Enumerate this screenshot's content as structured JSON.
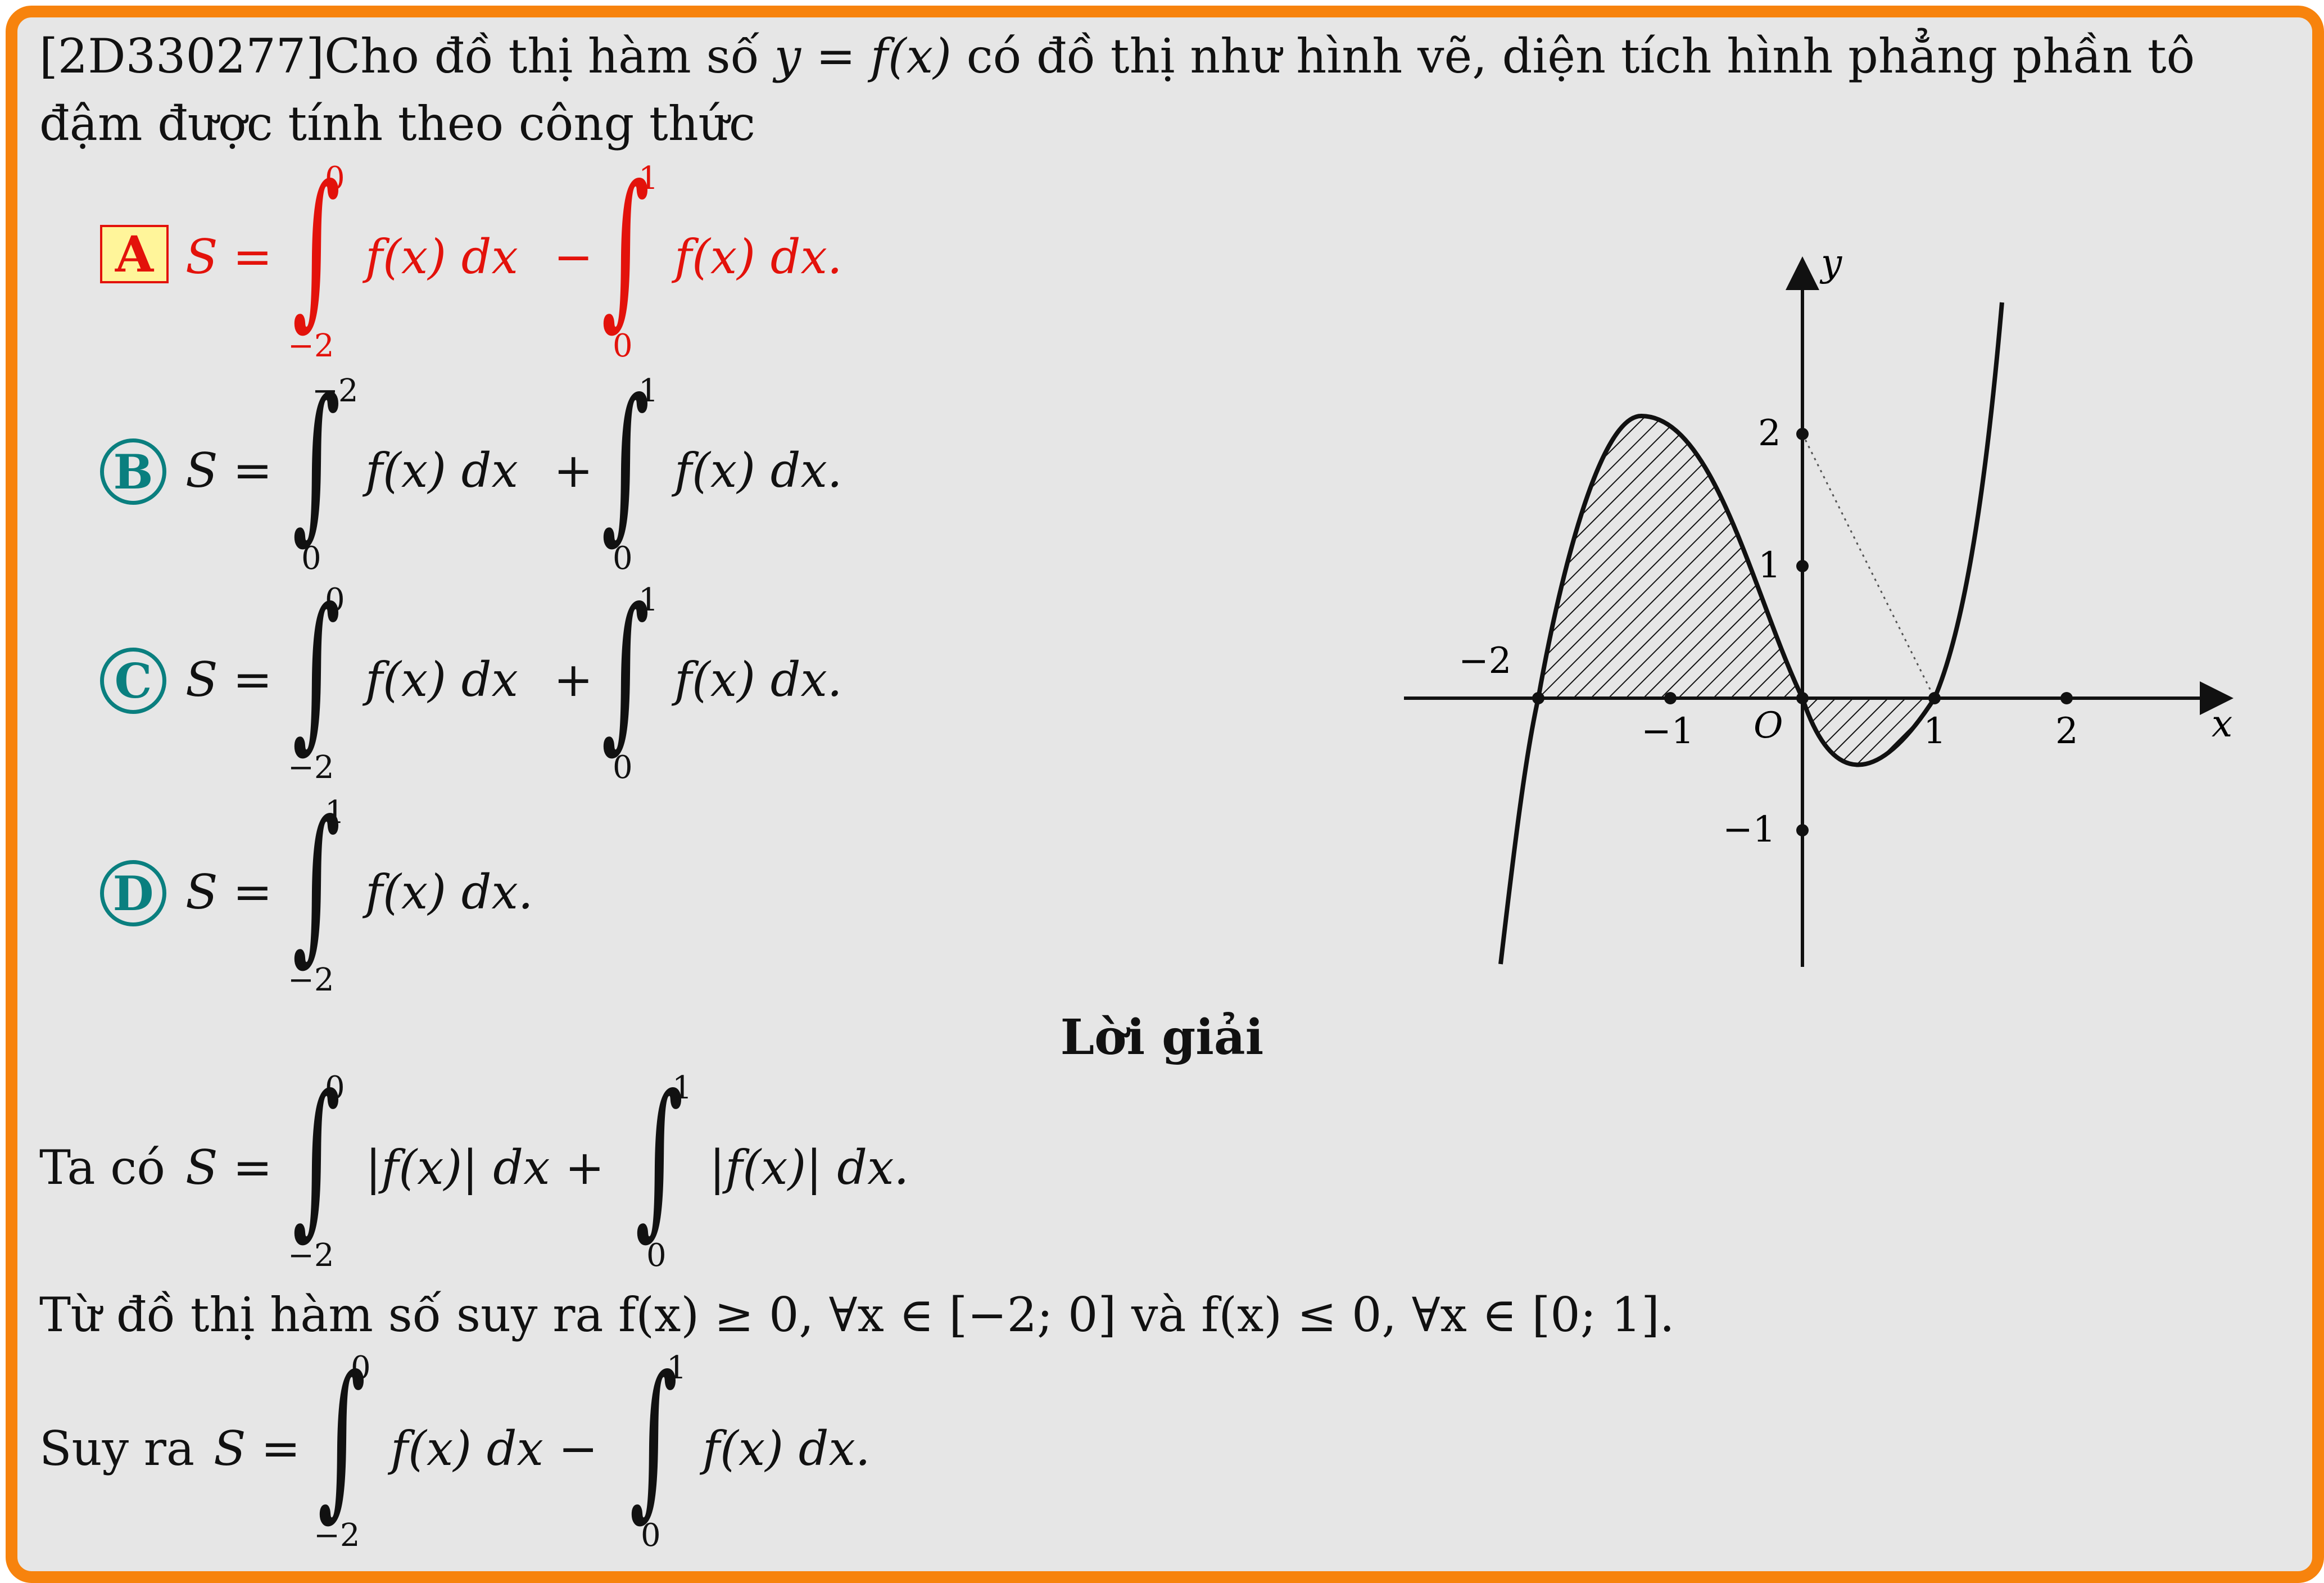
{
  "question": {
    "id": "[2D330277]",
    "text_1": "Cho đồ thị hàm số",
    "func": "y = f(x)",
    "text_2": "có đồ thị như hình vẽ, diện tích hình phẳng phần tô",
    "line2": "đậm được tính theo công thức"
  },
  "options": [
    {
      "letter": "A",
      "selected": true,
      "int1_upper": "0",
      "int1_lower": "−2",
      "op": "−",
      "int2_upper": "1",
      "int2_lower": "0",
      "lhs": "S =",
      "body1": "f(x) dx",
      "body2": "f(x) dx."
    },
    {
      "letter": "B",
      "selected": false,
      "int1_upper": "−2",
      "int1_lower": "0",
      "op": "+",
      "int2_upper": "1",
      "int2_lower": "0",
      "lhs": "S =",
      "body1": "f(x) dx",
      "body2": "f(x) dx."
    },
    {
      "letter": "C",
      "selected": false,
      "int1_upper": "0",
      "int1_lower": "−2",
      "op": "+",
      "int2_upper": "1",
      "int2_lower": "0",
      "lhs": "S =",
      "body1": "f(x) dx",
      "body2": "f(x) dx."
    },
    {
      "letter": "D",
      "selected": false,
      "int1_upper": "1",
      "int1_lower": "−2",
      "lhs": "S =",
      "body1": "f(x) dx."
    }
  ],
  "solution": {
    "title": "Lời giải",
    "l1_prefix": "Ta có",
    "l1_lhs": "S =",
    "l1_body1": "|f(x)| dx +",
    "l1_body2": "|f(x)| dx.",
    "l1_int1_upper": "0",
    "l1_int1_lower": "−2",
    "l1_int2_upper": "1",
    "l1_int2_lower": "0",
    "l2": "Từ đồ thị hàm số suy ra f(x) ≥ 0, ∀x ∈ [−2; 0] và f(x) ≤ 0, ∀x ∈ [0; 1].",
    "l3_prefix": "Suy ra",
    "l3_lhs": "S =",
    "l3_body1": "f(x) dx −",
    "l3_body2": "f(x) dx.",
    "l3_int1_upper": "0",
    "l3_int1_lower": "−2",
    "l3_int2_upper": "1",
    "l3_int2_lower": "0"
  },
  "graph": {
    "axis_x_label": "x",
    "axis_y_label": "y",
    "origin_label": "O",
    "x_ticks": [
      "−2",
      "−1",
      "1",
      "2"
    ],
    "y_ticks": [
      "2",
      "1",
      "−1"
    ],
    "colors": {
      "accent_red": "#e3120b",
      "accent_teal": "#0a7f7f",
      "frame_orange": "#f7830d",
      "highlight_yellow": "#fff59a"
    }
  }
}
